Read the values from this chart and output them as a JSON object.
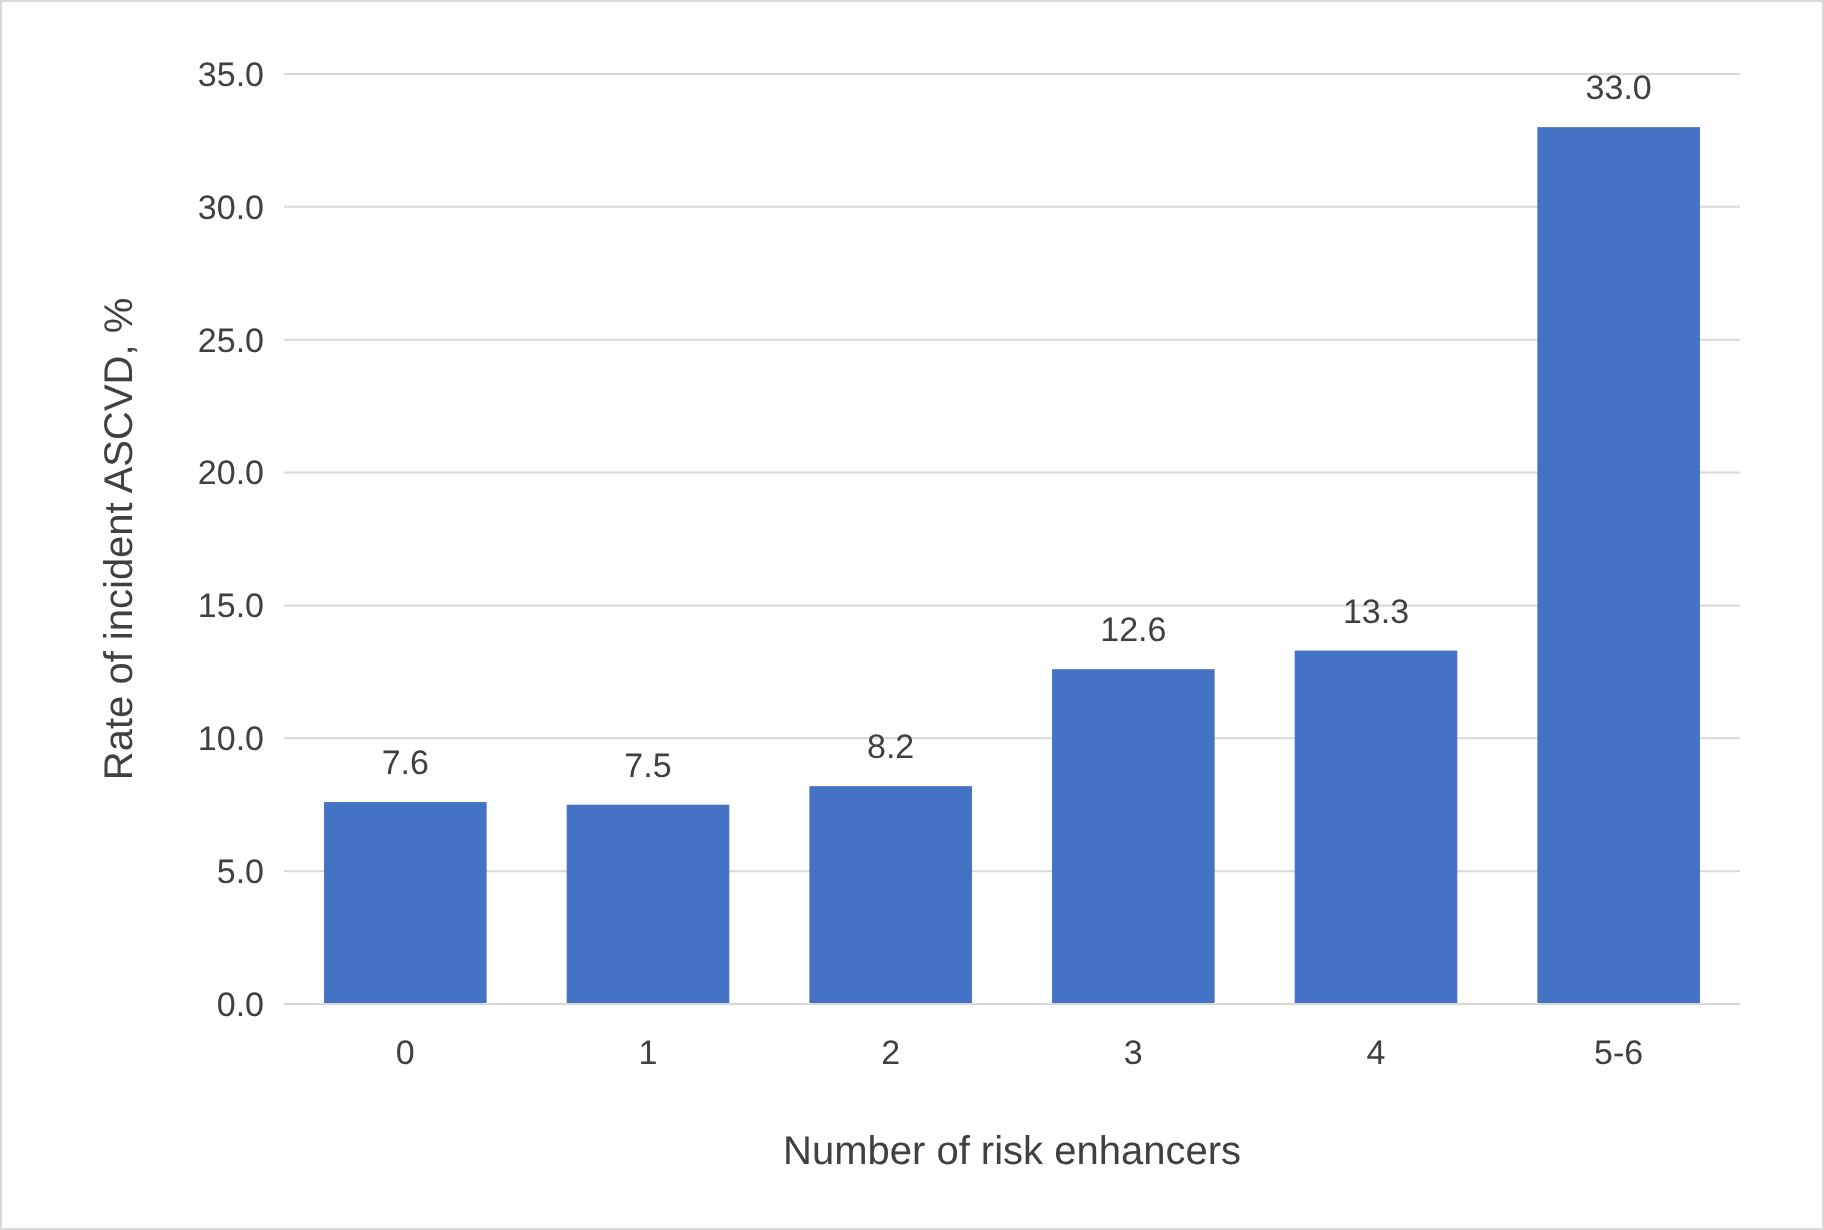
{
  "chart_data": {
    "type": "bar",
    "xlabel": "Number of risk enhancers",
    "ylabel": "Rate of incident ASCVD, %",
    "categories": [
      "0",
      "1",
      "2",
      "3",
      "4",
      "5-6"
    ],
    "values": [
      7.6,
      7.5,
      8.2,
      12.6,
      13.3,
      33.0
    ],
    "value_labels": [
      "7.6",
      "7.5",
      "8.2",
      "12.6",
      "13.3",
      "33.0"
    ],
    "color": "#4472c4",
    "ylim": [
      0,
      35
    ],
    "yticks": [
      {
        "value": 0,
        "label": "0.0"
      },
      {
        "value": 5,
        "label": "5.0"
      },
      {
        "value": 10,
        "label": "10.0"
      },
      {
        "value": 15,
        "label": "15.0"
      },
      {
        "value": 20,
        "label": "20.0"
      },
      {
        "value": 25,
        "label": "25.0"
      },
      {
        "value": 30,
        "label": "30.0"
      },
      {
        "value": 35,
        "label": "35.0"
      }
    ],
    "grid": "y"
  }
}
